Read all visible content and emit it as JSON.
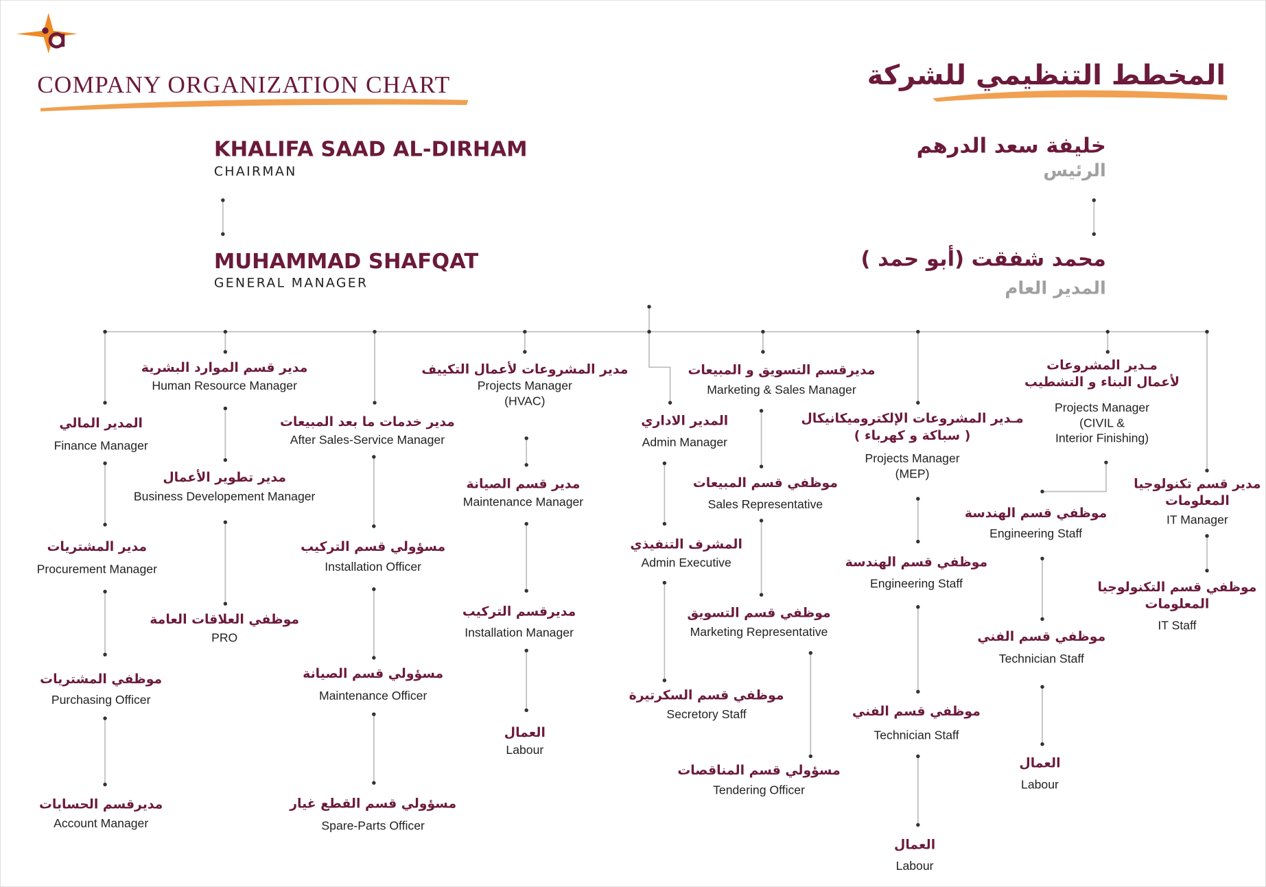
{
  "header": {
    "title_en": "COMPANY ORGANIZATION CHART",
    "title_ar": "المخطط التنظيمي للشركة"
  },
  "chairman": {
    "name_en": "KHALIFA SAAD AL-DIRHAM",
    "role_en": "CHAIRMAN",
    "name_ar": "خليفة سعد الدرهم",
    "role_ar": "الرئيس"
  },
  "general_manager": {
    "name_en": "MUHAMMAD SHAFQAT",
    "role_en": "GENERAL MANAGER",
    "name_ar": "محمد شفقت (أبو حمد )",
    "role_ar": "المدير العام"
  },
  "nodes": [
    {
      "ar": [
        "المدير المالي"
      ],
      "en": [
        "Finance Manager"
      ]
    },
    {
      "ar": [
        "مدير المشتريات"
      ],
      "en": [
        "Procurement Manager"
      ]
    },
    {
      "ar": [
        "موظفي المشتريات"
      ],
      "en": [
        "Purchasing Officer"
      ]
    },
    {
      "ar": [
        "مديرقسم الحسابات"
      ],
      "en": [
        "Account Manager"
      ]
    },
    {
      "ar": [
        "مدير قسم الموارد البشرية"
      ],
      "en": [
        "Human Resource Manager"
      ]
    },
    {
      "ar": [
        "مدير تطوير الأعمال"
      ],
      "en": [
        "Business Developement Manager"
      ]
    },
    {
      "ar": [
        "موظفي العلاقات العامة"
      ],
      "en": [
        "PRO"
      ]
    },
    {
      "ar": [
        "مدير خدمات ما بعد المبيعات"
      ],
      "en": [
        "After Sales-Service Manager"
      ]
    },
    {
      "ar": [
        "مسؤولي قسم التركيب"
      ],
      "en": [
        "Installation Officer"
      ]
    },
    {
      "ar": [
        "مسؤولي قسم الصيانة"
      ],
      "en": [
        "Maintenance Officer"
      ]
    },
    {
      "ar": [
        "مسؤولي قسم القطع غيار"
      ],
      "en": [
        "Spare-Parts Officer"
      ]
    },
    {
      "ar": [
        "مدير المشروعات لأعمال التكييف"
      ],
      "en": [
        "Projects Manager",
        "(HVAC)"
      ]
    },
    {
      "ar": [
        "مدير قسم الصيانة"
      ],
      "en": [
        "Maintenance Manager"
      ]
    },
    {
      "ar": [
        "مديرقسم التركيب"
      ],
      "en": [
        "Installation Manager"
      ]
    },
    {
      "ar": [
        "العمال"
      ],
      "en": [
        "Labour"
      ]
    },
    {
      "ar": [
        "المدير الاداري"
      ],
      "en": [
        "Admin Manager"
      ]
    },
    {
      "ar": [
        "المشرف التنفيذي"
      ],
      "en": [
        "Admin Executive"
      ]
    },
    {
      "ar": [
        "موظفي قسم السكرتيرة"
      ],
      "en": [
        "Secretory Staff"
      ]
    },
    {
      "ar": [
        "مديرقسم التسويق و المبيعات"
      ],
      "en": [
        "Marketing & Sales Manager"
      ]
    },
    {
      "ar": [
        "موظفي قسم المبيعات"
      ],
      "en": [
        "Sales Representative"
      ]
    },
    {
      "ar": [
        "موظفي قسم التسويق"
      ],
      "en": [
        "Marketing Representative"
      ]
    },
    {
      "ar": [
        "مسؤولي قسم المناقصات"
      ],
      "en": [
        "Tendering Officer"
      ]
    },
    {
      "ar": [
        "مـدير المشروعات الإلكتروميكانيكال",
        "( سباكة و كهرباء )"
      ],
      "en": [
        "Projects Manager",
        "(MEP)"
      ]
    },
    {
      "ar": [
        "موظفي قسم الهندسة"
      ],
      "en": [
        "Engineering Staff"
      ]
    },
    {
      "ar": [
        "موظفي قسم الفني"
      ],
      "en": [
        "Technician Staff"
      ]
    },
    {
      "ar": [
        "العمال"
      ],
      "en": [
        "Labour"
      ]
    },
    {
      "ar": [
        "مـدير المشروعات",
        "لأعمال البناء و التشطيب"
      ],
      "en": [
        "Projects Manager",
        "(CIVIL &",
        "Interior Finishing)"
      ]
    },
    {
      "ar": [
        "موظفي قسم الهندسة"
      ],
      "en": [
        "Engineering Staff"
      ]
    },
    {
      "ar": [
        "موظفي قسم الفني"
      ],
      "en": [
        "Technician Staff"
      ]
    },
    {
      "ar": [
        "العمال"
      ],
      "en": [
        "Labour"
      ]
    },
    {
      "ar": [
        "مدير قسم تكنولوجيا",
        "المعلومات"
      ],
      "en": [
        "IT Manager"
      ]
    },
    {
      "ar": [
        "موظفي قسم التكنولوجيا",
        "المعلومات"
      ],
      "en": [
        "IT Staff"
      ]
    }
  ]
}
